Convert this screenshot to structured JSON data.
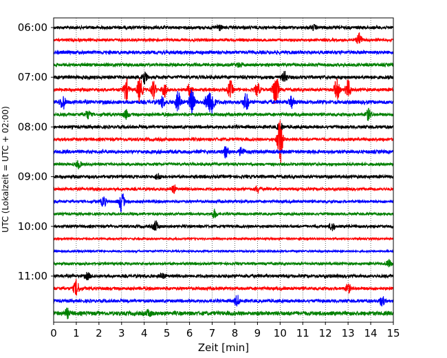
{
  "chart_data": {
    "type": "line",
    "title": "",
    "xlabel": "Zeit  [min]",
    "ylabel": "UTC (Lokalzeit = UTC + 02:00)",
    "xlim": [
      0,
      15
    ],
    "x_ticks": [
      0,
      1,
      2,
      3,
      4,
      5,
      6,
      7,
      8,
      9,
      10,
      11,
      12,
      13,
      14,
      15
    ],
    "y_start_time": "06:00",
    "trace_interval_min": 15,
    "y_tick_labels": [
      "06:00",
      "07:00",
      "08:00",
      "09:00",
      "10:00",
      "11:00"
    ],
    "grid": "vertical-dotted",
    "colors": [
      "#000000",
      "#ff0000",
      "#0000ff",
      "#008000"
    ],
    "traces": [
      {
        "start": "06:00",
        "color": "#000000",
        "amplitude": 1.0,
        "events": [
          [
            7.3,
            1.5
          ],
          [
            11.5,
            1.0
          ]
        ]
      },
      {
        "start": "06:15",
        "color": "#ff0000",
        "amplitude": 0.9,
        "events": [
          [
            13.5,
            3.0
          ]
        ]
      },
      {
        "start": "06:30",
        "color": "#0000ff",
        "amplitude": 1.1,
        "events": []
      },
      {
        "start": "06:45",
        "color": "#008000",
        "amplitude": 1.0,
        "events": [
          [
            8.2,
            1.0
          ]
        ]
      },
      {
        "start": "07:00",
        "color": "#000000",
        "amplitude": 1.1,
        "events": [
          [
            4.0,
            3.5
          ],
          [
            10.2,
            2.5
          ]
        ]
      },
      {
        "start": "07:15",
        "color": "#ff0000",
        "amplitude": 1.0,
        "events": [
          [
            3.2,
            5.0
          ],
          [
            3.8,
            6.0
          ],
          [
            4.4,
            4.0
          ],
          [
            4.9,
            3.5
          ],
          [
            6.0,
            2.5
          ],
          [
            7.8,
            4.0
          ],
          [
            9.0,
            3.0
          ],
          [
            9.8,
            10.0
          ],
          [
            12.5,
            5.0
          ],
          [
            13.0,
            4.5
          ]
        ]
      },
      {
        "start": "07:30",
        "color": "#0000ff",
        "amplitude": 1.2,
        "events": [
          [
            0.4,
            3.5
          ],
          [
            4.8,
            2.5
          ],
          [
            5.5,
            5.0
          ],
          [
            6.1,
            6.0
          ],
          [
            6.8,
            4.5
          ],
          [
            7.0,
            6.0
          ],
          [
            8.5,
            4.0
          ],
          [
            10.5,
            2.5
          ]
        ]
      },
      {
        "start": "07:45",
        "color": "#008000",
        "amplitude": 1.0,
        "events": [
          [
            1.5,
            1.8
          ],
          [
            3.2,
            2.0
          ],
          [
            13.9,
            2.5
          ]
        ]
      },
      {
        "start": "08:00",
        "color": "#000000",
        "amplitude": 1.0,
        "events": [
          [
            10.0,
            2.0
          ]
        ]
      },
      {
        "start": "08:15",
        "color": "#ff0000",
        "amplitude": 1.0,
        "events": [
          [
            10.0,
            12.0
          ]
        ]
      },
      {
        "start": "08:30",
        "color": "#0000ff",
        "amplitude": 1.1,
        "events": [
          [
            7.6,
            2.5
          ],
          [
            8.3,
            2.0
          ]
        ]
      },
      {
        "start": "08:45",
        "color": "#008000",
        "amplitude": 0.9,
        "events": [
          [
            1.1,
            1.8
          ]
        ]
      },
      {
        "start": "09:00",
        "color": "#000000",
        "amplitude": 1.0,
        "events": [
          [
            4.6,
            1.5
          ]
        ]
      },
      {
        "start": "09:15",
        "color": "#ff0000",
        "amplitude": 0.9,
        "events": [
          [
            5.3,
            1.8
          ],
          [
            9.0,
            1.5
          ]
        ]
      },
      {
        "start": "09:30",
        "color": "#0000ff",
        "amplitude": 0.9,
        "events": [
          [
            2.2,
            2.5
          ],
          [
            3.0,
            5.0
          ]
        ]
      },
      {
        "start": "09:45",
        "color": "#008000",
        "amplitude": 0.8,
        "events": [
          [
            7.1,
            2.0
          ]
        ]
      },
      {
        "start": "10:00",
        "color": "#000000",
        "amplitude": 0.9,
        "events": [
          [
            4.5,
            2.5
          ],
          [
            12.3,
            2.0
          ]
        ]
      },
      {
        "start": "10:15",
        "color": "#ff0000",
        "amplitude": 0.6,
        "events": []
      },
      {
        "start": "10:30",
        "color": "#0000ff",
        "amplitude": 0.6,
        "events": []
      },
      {
        "start": "10:45",
        "color": "#008000",
        "amplitude": 0.8,
        "events": [
          [
            14.8,
            1.8
          ]
        ]
      },
      {
        "start": "11:00",
        "color": "#000000",
        "amplitude": 1.0,
        "events": [
          [
            1.5,
            1.5
          ],
          [
            4.8,
            1.2
          ]
        ]
      },
      {
        "start": "11:15",
        "color": "#ff0000",
        "amplitude": 1.0,
        "events": [
          [
            1.0,
            4.0
          ],
          [
            13.0,
            2.0
          ]
        ]
      },
      {
        "start": "11:30",
        "color": "#0000ff",
        "amplitude": 1.0,
        "events": [
          [
            8.1,
            2.5
          ],
          [
            14.5,
            2.2
          ]
        ]
      },
      {
        "start": "11:45",
        "color": "#008000",
        "amplitude": 1.3,
        "events": [
          [
            0.6,
            2.0
          ],
          [
            4.2,
            1.5
          ]
        ]
      }
    ]
  }
}
